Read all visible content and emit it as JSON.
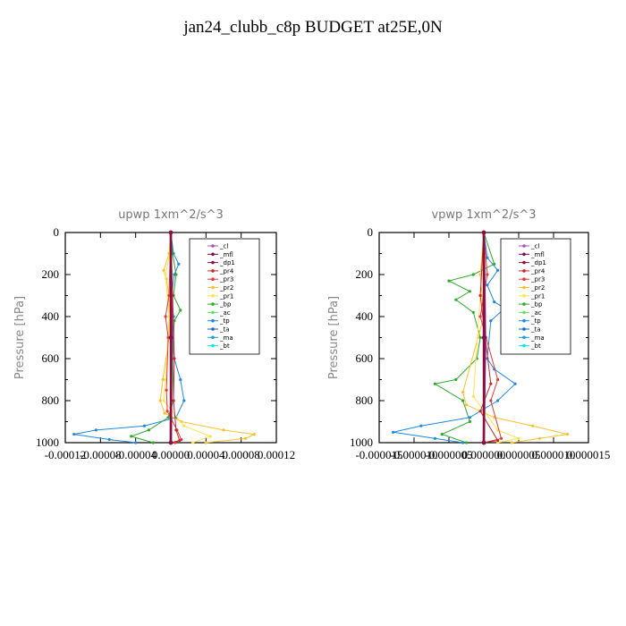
{
  "title": "jan24_clubb_c8p  BUDGET at25E,0N",
  "series_colors": {
    "_cl": "#9b59b6",
    "_mfl": "#7b0a55",
    "_dp1": "#8b1040",
    "_pr4": "#c62828",
    "_pr3": "#e53935",
    "_pr2": "#fbc02d",
    "_pr1": "#ffe34d",
    "_bp": "#2eaa2e",
    "_ac": "#66dd66",
    "_tp": "#1e88e5",
    "_ta": "#1565c0",
    "_ma": "#1a9fd6",
    "_bt": "#00e5ff"
  },
  "chart_data": [
    {
      "type": "line",
      "title": "upwp   1xm^2/s^3",
      "ylabel": "Pressure [hPa]",
      "ylim": [
        1000,
        0
      ],
      "yticks": [
        0,
        200,
        400,
        600,
        800,
        1000
      ],
      "ytick_labels": [
        "0",
        "200",
        "400",
        "600",
        "800",
        "1000"
      ],
      "xlim": [
        -0.00012,
        0.00012
      ],
      "xtick_labels": [
        "-0.00012",
        "-0.00008",
        "-0.00004",
        "0.00000",
        "0.00004",
        "0.00008",
        "0.00012"
      ],
      "legend": [
        "_cl",
        "_mfl",
        "_dp1",
        "_pr4",
        "_pr3",
        "_pr2",
        "_pr1",
        "_bp",
        "_ac",
        "_tp",
        "_ta",
        "_ma",
        "_bt"
      ],
      "legend_position": "top-right",
      "series": [
        {
          "name": "_tp",
          "points": [
            [
              0,
              0
            ],
            [
              3e-06,
              100
            ],
            [
              9e-06,
              150
            ],
            [
              4e-06,
              200
            ],
            [
              1e-06,
              300
            ],
            [
              3e-06,
              400
            ],
            [
              2e-06,
              500
            ],
            [
              4e-06,
              600
            ],
            [
              1.1e-05,
              700
            ],
            [
              1.5e-05,
              800
            ],
            [
              6e-06,
              880
            ],
            [
              -3e-05,
              920
            ],
            [
              -8.5e-05,
              940
            ],
            [
              -0.00011,
              960
            ],
            [
              -7e-05,
              985
            ],
            [
              -4e-05,
              1000
            ]
          ]
        },
        {
          "name": "_pr2",
          "points": [
            [
              0,
              0
            ],
            [
              -2e-06,
              100
            ],
            [
              -8e-06,
              180
            ],
            [
              -5e-06,
              220
            ],
            [
              -2e-06,
              300
            ],
            [
              -2e-06,
              500
            ],
            [
              -9e-06,
              700
            ],
            [
              -1.2e-05,
              800
            ],
            [
              -7e-06,
              860
            ],
            [
              1.2e-05,
              900
            ],
            [
              6e-05,
              940
            ],
            [
              9.5e-05,
              960
            ],
            [
              8.5e-05,
              980
            ],
            [
              4e-05,
              1000
            ]
          ]
        },
        {
          "name": "_pr1",
          "points": [
            [
              0,
              0
            ],
            [
              -2e-06,
              120
            ],
            [
              -6e-06,
              200
            ],
            [
              -2e-06,
              400
            ],
            [
              -6e-06,
              700
            ],
            [
              -8e-06,
              800
            ],
            [
              1.5e-05,
              920
            ],
            [
              4.5e-05,
              970
            ],
            [
              2.5e-05,
              1000
            ]
          ]
        },
        {
          "name": "_bp",
          "points": [
            [
              0,
              0
            ],
            [
              2e-06,
              100
            ],
            [
              6e-06,
              200
            ],
            [
              3e-06,
              300
            ],
            [
              1.1e-05,
              370
            ],
            [
              4e-06,
              420
            ],
            [
              2e-06,
              600
            ],
            [
              3e-06,
              800
            ],
            [
              -3e-06,
              880
            ],
            [
              -2.5e-05,
              940
            ],
            [
              -4.5e-05,
              970
            ],
            [
              -2e-05,
              1000
            ]
          ]
        },
        {
          "name": "_pr3",
          "points": [
            [
              0,
              0
            ],
            [
              -2e-06,
              300
            ],
            [
              -6e-06,
              400
            ],
            [
              -3e-06,
              500
            ],
            [
              -5e-06,
              750
            ],
            [
              -4e-06,
              850
            ],
            [
              7e-06,
              940
            ],
            [
              1.2e-05,
              985
            ],
            [
              5e-06,
              1000
            ]
          ]
        },
        {
          "name": "_pr4",
          "points": [
            [
              0,
              0
            ],
            [
              2e-06,
              300
            ],
            [
              4e-06,
              600
            ],
            [
              3e-06,
              800
            ],
            [
              6e-06,
              940
            ],
            [
              1e-05,
              990
            ],
            [
              0,
              1000
            ]
          ]
        },
        {
          "name": "_cl",
          "points": [
            [
              0,
              0
            ],
            [
              1e-06,
              500
            ],
            [
              0,
              1000
            ]
          ]
        },
        {
          "name": "_mfl",
          "points": [
            [
              0,
              0
            ],
            [
              0,
              500
            ],
            [
              0,
              1000
            ]
          ]
        },
        {
          "name": "_dp1",
          "points": [
            [
              0,
              0
            ],
            [
              5e-07,
              500
            ],
            [
              0,
              1000
            ]
          ]
        }
      ]
    },
    {
      "type": "line",
      "title": "vpwp   1xm^2/s^3",
      "ylabel": "Pressure [hPa]",
      "ylim": [
        1000,
        0
      ],
      "yticks": [
        0,
        200,
        400,
        600,
        800,
        1000
      ],
      "ytick_labels": [
        "0",
        "200",
        "400",
        "600",
        "800",
        "1000"
      ],
      "xlim": [
        -1.5e-05,
        1.5e-05
      ],
      "xtick_labels": [
        "-0.000015",
        "-0.000010",
        "-0.000005",
        "0.000000",
        "0.000005",
        "0.000010",
        "0.000015"
      ],
      "legend": [
        "_cl",
        "_mfl",
        "_dp1",
        "_pr4",
        "_pr3",
        "_pr2",
        "_pr1",
        "_bp",
        "_ac",
        "_tp",
        "_ta",
        "_ma",
        "_bt"
      ],
      "legend_position": "top-right",
      "series": [
        {
          "name": "_tp",
          "points": [
            [
              0,
              0
            ],
            [
              5e-07,
              120
            ],
            [
              2e-06,
              180
            ],
            [
              5e-07,
              250
            ],
            [
              1.5e-06,
              330
            ],
            [
              3e-06,
              360
            ],
            [
              1e-06,
              420
            ],
            [
              5e-07,
              600
            ],
            [
              1.5e-06,
              650
            ],
            [
              4.5e-06,
              720
            ],
            [
              2e-06,
              800
            ],
            [
              -2e-06,
              880
            ],
            [
              -9e-06,
              920
            ],
            [
              -1.3e-05,
              950
            ],
            [
              -7e-06,
              980
            ],
            [
              -3e-06,
              1000
            ]
          ]
        },
        {
          "name": "_bp",
          "points": [
            [
              0,
              0
            ],
            [
              1.5e-06,
              150
            ],
            [
              -1.5e-06,
              200
            ],
            [
              -5e-06,
              230
            ],
            [
              -2e-06,
              280
            ],
            [
              -4e-06,
              320
            ],
            [
              -1.5e-06,
              380
            ],
            [
              -5e-07,
              500
            ],
            [
              -1e-06,
              600
            ],
            [
              -4e-06,
              700
            ],
            [
              -7e-06,
              720
            ],
            [
              -3e-06,
              800
            ],
            [
              -2e-06,
              900
            ],
            [
              -6e-06,
              960
            ],
            [
              -2.5e-06,
              1000
            ]
          ]
        },
        {
          "name": "_pr2",
          "points": [
            [
              0,
              0
            ],
            [
              -5e-07,
              200
            ],
            [
              0,
              400
            ],
            [
              -3e-06,
              760
            ],
            [
              -2.5e-06,
              820
            ],
            [
              1.5e-06,
              880
            ],
            [
              7e-06,
              920
            ],
            [
              1.2e-05,
              960
            ],
            [
              8e-06,
              980
            ],
            [
              4e-06,
              1000
            ]
          ]
        },
        {
          "name": "_pr1",
          "points": [
            [
              0,
              0
            ],
            [
              -5e-07,
              300
            ],
            [
              -1.5e-06,
              780
            ],
            [
              2e-06,
              940
            ],
            [
              5e-06,
              980
            ],
            [
              2e-06,
              1000
            ]
          ]
        },
        {
          "name": "_pr3",
          "points": [
            [
              0,
              0
            ],
            [
              5e-07,
              200
            ],
            [
              -5e-07,
              400
            ],
            [
              2e-06,
              700
            ],
            [
              1e-06,
              800
            ],
            [
              2.5e-06,
              980
            ],
            [
              0,
              1000
            ]
          ]
        },
        {
          "name": "_pr4",
          "points": [
            [
              0,
              0
            ],
            [
              -5e-07,
              300
            ],
            [
              1e-06,
              720
            ],
            [
              -5e-07,
              850
            ],
            [
              2e-06,
              990
            ],
            [
              0,
              1000
            ]
          ]
        },
        {
          "name": "_cl",
          "points": [
            [
              0,
              0
            ],
            [
              2e-07,
              500
            ],
            [
              0,
              1000
            ]
          ]
        },
        {
          "name": "_mfl",
          "points": [
            [
              0,
              0
            ],
            [
              0,
              500
            ],
            [
              0,
              1000
            ]
          ]
        },
        {
          "name": "_dp1",
          "points": [
            [
              0,
              0
            ],
            [
              1e-07,
              500
            ],
            [
              0,
              1000
            ]
          ]
        }
      ]
    }
  ]
}
